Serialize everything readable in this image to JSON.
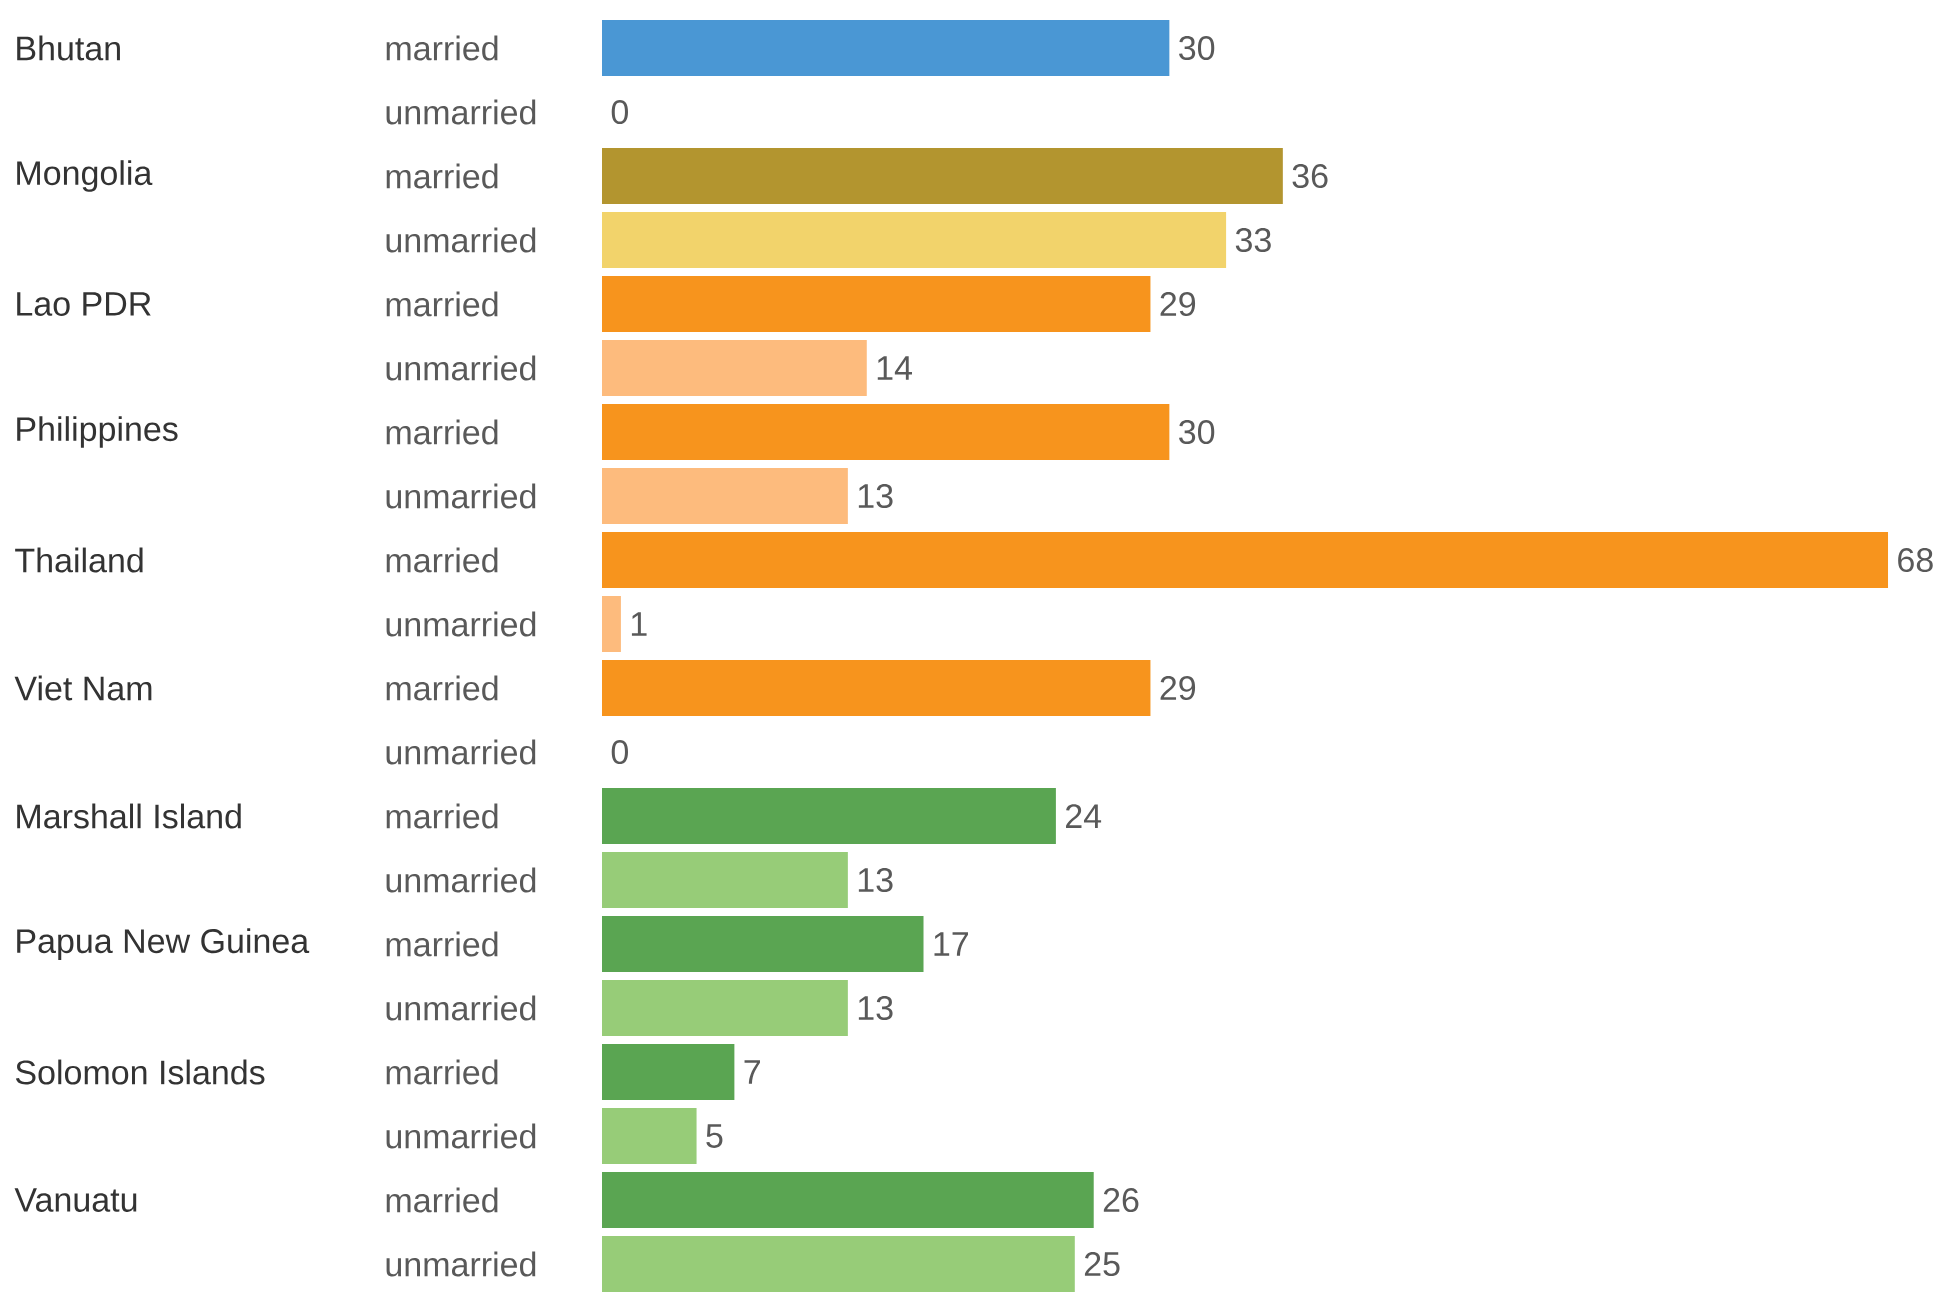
{
  "chart_data": {
    "type": "bar",
    "orientation": "horizontal",
    "data_labels": true,
    "categories": [
      "married",
      "unmarried",
      "married",
      "unmarried",
      "married",
      "unmarried",
      "married",
      "unmarried",
      "married",
      "unmarried",
      "married",
      "unmarried",
      "married",
      "unmarried",
      "married",
      "unmarried",
      "married",
      "unmarried",
      "married",
      "unmarried"
    ],
    "values": [
      30,
      0,
      36,
      33,
      29,
      14,
      30,
      13,
      68,
      1,
      29,
      0,
      24,
      13,
      17,
      13,
      7,
      5,
      26,
      25
    ],
    "colors": [
      "#4a97d4",
      "#4a97d4",
      "#b3952f",
      "#f2d36b",
      "#f7941d",
      "#fdbb7d",
      "#f7941d",
      "#fdbb7d",
      "#f7941d",
      "#fdbb7d",
      "#f7941d",
      "#fdbb7d",
      "#5aa552",
      "#97cc78",
      "#5aa552",
      "#97cc78",
      "#5aa552",
      "#97cc78",
      "#5aa552",
      "#97cc78"
    ],
    "annotations": [
      "Bhutan",
      "Mongolia",
      "Lao PDR",
      "Philippines",
      "Thailand",
      "Viet Nam",
      "Marshall Island",
      "Papua New Guinea",
      "Solomon Islands",
      "Vanuatu"
    ]
  }
}
